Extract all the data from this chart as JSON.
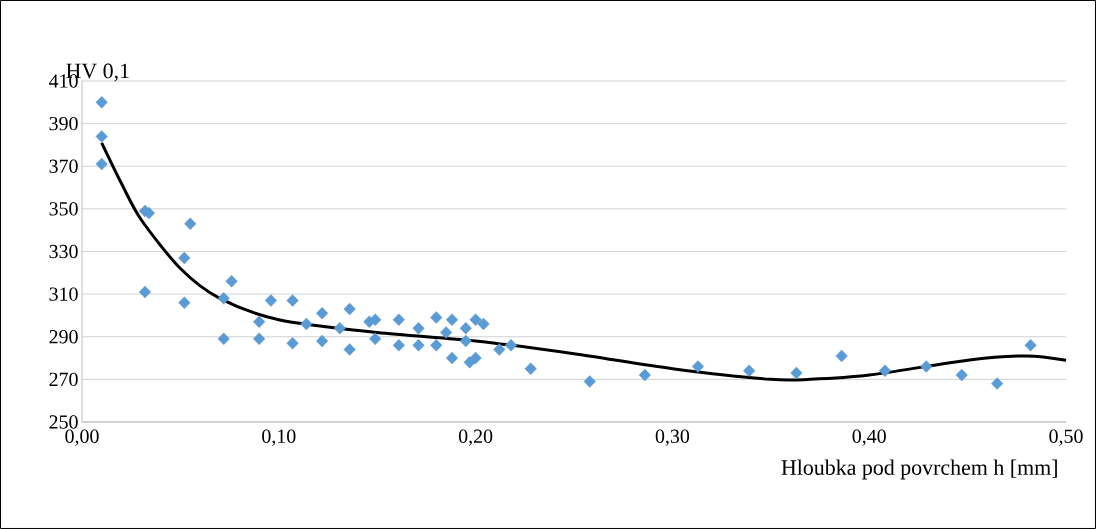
{
  "chart_data": {
    "type": "scatter",
    "xlabel": "Hloubka pod povrchem h [mm]",
    "ylabel": "HV 0,1",
    "xlim": [
      0,
      0.5
    ],
    "ylim": [
      250,
      410
    ],
    "xticks": [
      {
        "value": 0,
        "label": "0,00"
      },
      {
        "value": 0.1,
        "label": "0,10"
      },
      {
        "value": 0.2,
        "label": "0,20"
      },
      {
        "value": 0.3,
        "label": "0,30"
      },
      {
        "value": 0.4,
        "label": "0,40"
      },
      {
        "value": 0.5,
        "label": "0,50"
      }
    ],
    "yticks": [
      250,
      270,
      290,
      310,
      330,
      350,
      370,
      390,
      410
    ],
    "grid": "y",
    "series": [
      {
        "color": "#5b9bd5",
        "marker": "diamond",
        "x": [
          0.01,
          0.01,
          0.01,
          0.032,
          0.034,
          0.032,
          0.055,
          0.052,
          0.052,
          0.072,
          0.076,
          0.072,
          0.09,
          0.09,
          0.096,
          0.107,
          0.107,
          0.114,
          0.122,
          0.122,
          0.131,
          0.136,
          0.136,
          0.146,
          0.149,
          0.149,
          0.161,
          0.161,
          0.171,
          0.171,
          0.18,
          0.18,
          0.185,
          0.188,
          0.188,
          0.195,
          0.195,
          0.197,
          0.2,
          0.2,
          0.204,
          0.212,
          0.218,
          0.228,
          0.258,
          0.286,
          0.313,
          0.339,
          0.363,
          0.386,
          0.408,
          0.429,
          0.447,
          0.465,
          0.482
        ],
        "values": [
          400,
          384,
          371,
          349,
          348,
          311,
          343,
          327,
          306,
          308,
          316,
          289,
          297,
          289,
          307,
          307,
          287,
          296,
          301,
          288,
          294,
          303,
          284,
          297,
          298,
          289,
          298,
          286,
          294,
          286,
          299,
          286,
          292,
          298,
          280,
          294,
          288,
          278,
          280,
          298,
          296,
          284,
          286,
          275,
          269,
          272,
          276,
          274,
          273,
          281,
          274,
          276,
          272,
          268,
          286
        ]
      },
      {
        "type": "line",
        "color": "#000000",
        "marker": "none",
        "x": [
          0.01,
          0.02,
          0.03,
          0.05,
          0.07,
          0.1,
          0.15,
          0.2,
          0.25,
          0.3,
          0.35,
          0.37,
          0.4,
          0.45,
          0.48,
          0.5
        ],
        "values": [
          381,
          362,
          345,
          322,
          308,
          298,
          292,
          288,
          282,
          275,
          270,
          270,
          272,
          279,
          281,
          279
        ]
      }
    ]
  }
}
